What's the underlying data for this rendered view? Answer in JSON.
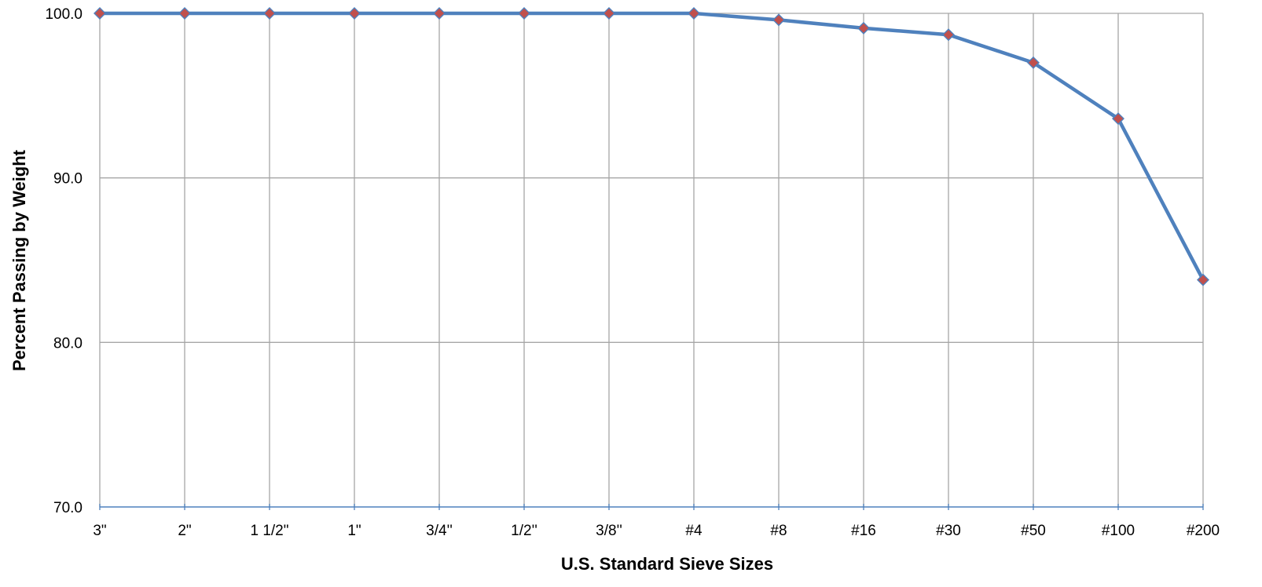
{
  "chart_data": {
    "type": "line",
    "title": "",
    "xlabel": "U.S.  Standard Sieve Sizes",
    "ylabel": "Percent Passing by Weight",
    "categories": [
      "3\"",
      "2\"",
      "1 1/2\"",
      "1\"",
      "3/4''",
      "1/2''",
      "3/8''",
      "#4",
      "#8",
      "#16",
      "#30",
      "#50",
      "#100",
      "#200"
    ],
    "series": [
      {
        "values": [
          100.0,
          100.0,
          100.0,
          100.0,
          100.0,
          100.0,
          100.0,
          100.0,
          99.6,
          99.1,
          98.7,
          97.0,
          93.6,
          83.8
        ]
      }
    ],
    "ylim": [
      70,
      100
    ],
    "yticks": [
      "100.0",
      "90.0",
      "80.0",
      "70.0"
    ],
    "grid": true,
    "legend": "none",
    "colors": {
      "line": "#4f81bd",
      "marker_fill": "#c0504d",
      "marker_stroke": "#4f81bd",
      "grid": "#a6a6a6",
      "axis": "#4f81bd"
    }
  }
}
